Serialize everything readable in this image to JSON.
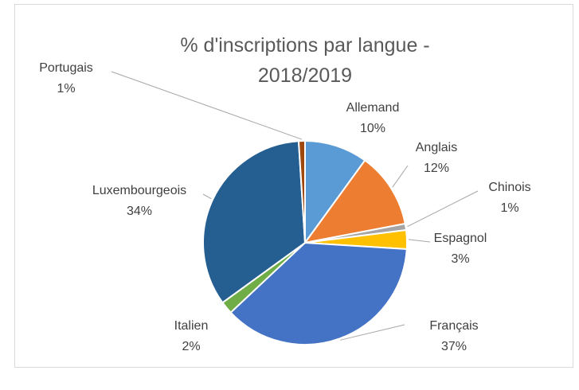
{
  "chart_data": {
    "type": "pie",
    "title": "% d'inscriptions par langue - 2018/2019",
    "categories": [
      "Allemand",
      "Anglais",
      "Chinois",
      "Espagnol",
      "Français",
      "Italien",
      "Luxembourgeois",
      "Portugais"
    ],
    "values": [
      10,
      12,
      1,
      3,
      37,
      2,
      34,
      1
    ],
    "value_labels": [
      "10%",
      "12%",
      "1%",
      "3%",
      "37%",
      "2%",
      "34%",
      "1%"
    ],
    "colors": [
      "#5b9bd5",
      "#ed7d31",
      "#a5a5a5",
      "#ffc000",
      "#4472c4",
      "#70ad47",
      "#255e91",
      "#9e480e"
    ]
  }
}
